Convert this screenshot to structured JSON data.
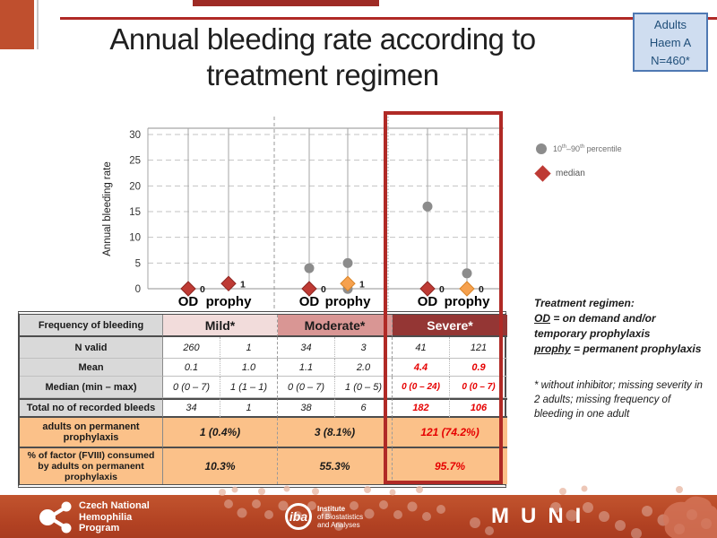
{
  "header": {
    "title_lines": [
      "Annual bleeding rate according to",
      "treatment regimen"
    ],
    "badge_lines": [
      "Adults",
      "Haem A",
      "N=460*"
    ]
  },
  "chart_data": {
    "type": "scatter",
    "title": "",
    "ylabel": "Annual bleeding rate",
    "yticks": [
      0,
      5,
      10,
      15,
      20,
      25,
      30
    ],
    "ylim": [
      0,
      31
    ],
    "grid": "dashed horizontal",
    "groups": [
      {
        "name": "Mild",
        "points": [
          {
            "category": "OD",
            "median": 0,
            "median_label": "0",
            "median_color": "#be3a34",
            "median_stroke": "#8e2723",
            "percentiles": []
          },
          {
            "category": "prophy",
            "median": 1,
            "median_label": "1",
            "median_color": "#be3a34",
            "median_stroke": "#8e2723",
            "percentiles": []
          }
        ]
      },
      {
        "name": "Moderate",
        "points": [
          {
            "category": "OD",
            "median": 0,
            "median_label": "0",
            "median_color": "#be3a34",
            "median_stroke": "#8e2723",
            "percentiles": [
              4
            ]
          },
          {
            "category": "prophy",
            "median": 1,
            "median_label": "1",
            "median_color": "#f6a14e",
            "median_stroke": "#d98428",
            "percentiles": [
              5,
              0
            ]
          }
        ]
      },
      {
        "name": "Severe",
        "points": [
          {
            "category": "OD",
            "median": 0,
            "median_label": "0",
            "median_color": "#be3a34",
            "median_stroke": "#8e2723",
            "percentiles": [
              16
            ]
          },
          {
            "category": "prophy",
            "median": 0,
            "median_label": "0",
            "median_color": "#f6a14e",
            "median_stroke": "#d98428",
            "percentiles": [
              3
            ]
          }
        ]
      }
    ],
    "legend": {
      "percentile_parts": [
        "10",
        "th",
        "–90",
        "th",
        " percentile"
      ],
      "median_label": "median",
      "percentile_color": "#8c8c8c",
      "median_color": "#be3a34"
    }
  },
  "table": {
    "header": {
      "label": "Frequency of bleeding",
      "groups": [
        {
          "label": "Mild*",
          "bg": "#f2dcdb",
          "fg": "#000000"
        },
        {
          "label": "Moderate*",
          "bg": "#d99694",
          "fg": "#000000"
        },
        {
          "label": "Severe*",
          "bg": "#943634",
          "fg": "#ffffff"
        }
      ]
    },
    "rows": [
      {
        "label": "N valid",
        "values": [
          "260",
          "1",
          "34",
          "3",
          "41",
          "121"
        ],
        "severe_red": false
      },
      {
        "label": "Mean",
        "values": [
          "0.1",
          "1.0",
          "1.1",
          "2.0",
          "4.4",
          "0.9"
        ],
        "severe_red": true
      },
      {
        "label": "Median (min – max)",
        "values": [
          "0 (0 – 7)",
          "1 (1 – 1)",
          "0 (0 – 7)",
          "1 (0 – 5)",
          "0 (0 – 24)",
          "0 (0 – 7)"
        ],
        "severe_red": true
      },
      {
        "label": "Total no of recorded bleeds",
        "values": [
          "34",
          "1",
          "38",
          "6",
          "182",
          "106"
        ],
        "severe_red": true
      }
    ],
    "merged_rows": [
      {
        "label": "adults on permanent prophylaxis",
        "values": [
          "1 (0.4%)",
          "3 (8.1%)",
          "121 (74.2%)"
        ]
      },
      {
        "label": "% of factor (FVIII) consumed by adults on permanent prophylaxis",
        "values": [
          "10.3%",
          "55.3%",
          "95.7%"
        ]
      }
    ],
    "severe_value_color": "#e60000"
  },
  "notes": {
    "heading": "Treatment regimen:",
    "line1_term": "OD",
    "line1_rest": " = on demand and/or temporary prophylaxis",
    "line2_term": "prophy",
    "line2_rest": " = permanent prophylaxis",
    "footnote": "* without inhibitor; missing severity in 2 adults; missing frequency of bleeding in one adult"
  },
  "footer": {
    "org_lines": [
      "Czech National",
      "Hemophilia",
      "Program"
    ],
    "iba_name": "iba",
    "iba_lines": [
      "Institute",
      "of Biostatistics",
      "and Analyses"
    ],
    "muni": "MUNI"
  }
}
